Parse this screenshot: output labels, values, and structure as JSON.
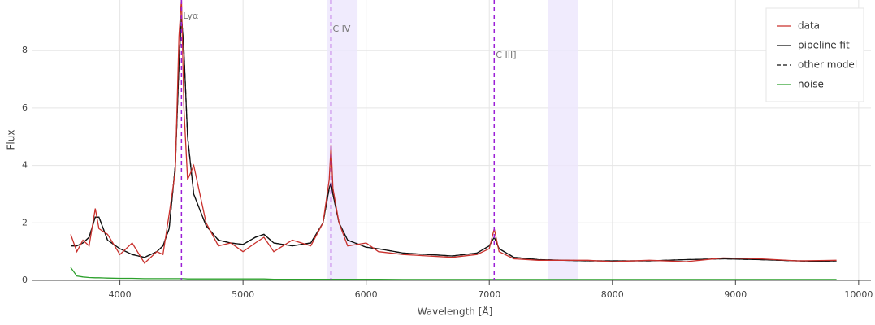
{
  "chart_data": {
    "type": "line",
    "x_label": "Wavelength [Å]",
    "y_label": "Flux",
    "xlim": [
      3290,
      10100
    ],
    "ylim": [
      0,
      9.76
    ],
    "xticks": [
      4000,
      5000,
      6000,
      7000,
      8000,
      9000,
      10000
    ],
    "yticks": [
      0,
      2,
      4,
      6,
      8
    ],
    "grid": true,
    "legend": "top-right",
    "x": [
      3600,
      3650,
      3700,
      3750,
      3800,
      3830,
      3900,
      4000,
      4100,
      4200,
      4300,
      4350,
      4400,
      4450,
      4480,
      4500,
      4520,
      4550,
      4600,
      4700,
      4800,
      4900,
      5000,
      5100,
      5170,
      5250,
      5400,
      5550,
      5650,
      5700,
      5715,
      5730,
      5780,
      5850,
      6000,
      6100,
      6300,
      6500,
      6700,
      6900,
      7000,
      7040,
      7080,
      7200,
      7400,
      7600,
      7800,
      8000,
      8300,
      8600,
      8900,
      9200,
      9500,
      9820
    ],
    "series": [
      {
        "name": "data",
        "color": "#c9302c",
        "style": "solid",
        "values": [
          1.6,
          1.0,
          1.4,
          1.2,
          2.5,
          1.8,
          1.6,
          0.9,
          1.3,
          0.6,
          1.0,
          0.9,
          2.3,
          3.8,
          8.5,
          9.8,
          6.0,
          3.5,
          4.0,
          2.0,
          1.2,
          1.3,
          1.0,
          1.3,
          1.5,
          1.0,
          1.4,
          1.2,
          2.0,
          3.5,
          4.7,
          3.2,
          2.0,
          1.2,
          1.3,
          1.0,
          0.9,
          0.85,
          0.8,
          0.9,
          1.1,
          1.8,
          1.0,
          0.75,
          0.7,
          0.7,
          0.7,
          0.65,
          0.7,
          0.65,
          0.78,
          0.75,
          0.68,
          0.7
        ]
      },
      {
        "name": "pipeline fit",
        "color": "#111111",
        "style": "solid",
        "values": [
          1.2,
          1.2,
          1.3,
          1.5,
          2.2,
          2.2,
          1.4,
          1.1,
          0.9,
          0.8,
          1.0,
          1.2,
          1.8,
          4.0,
          7.5,
          9.2,
          8.0,
          5.0,
          3.0,
          1.9,
          1.4,
          1.3,
          1.25,
          1.5,
          1.6,
          1.3,
          1.2,
          1.3,
          2.0,
          3.2,
          3.4,
          3.0,
          2.0,
          1.4,
          1.15,
          1.1,
          0.95,
          0.9,
          0.85,
          0.95,
          1.2,
          1.5,
          1.1,
          0.8,
          0.72,
          0.7,
          0.68,
          0.68,
          0.68,
          0.72,
          0.75,
          0.72,
          0.68,
          0.65
        ]
      },
      {
        "name": "other model",
        "color": "#111111",
        "style": "dashed",
        "values": [
          1.2,
          1.2,
          1.3,
          1.5,
          2.2,
          2.2,
          1.4,
          1.1,
          0.9,
          0.8,
          1.0,
          1.2,
          1.8,
          4.0,
          7.5,
          9.2,
          8.0,
          5.0,
          3.0,
          1.9,
          1.4,
          1.3,
          1.25,
          1.5,
          1.6,
          1.3,
          1.2,
          1.3,
          2.0,
          3.2,
          3.4,
          3.0,
          2.0,
          1.4,
          1.15,
          1.1,
          0.95,
          0.9,
          0.85,
          0.95,
          1.2,
          1.5,
          1.1,
          0.8,
          0.72,
          0.7,
          0.68,
          0.68,
          0.68,
          0.72,
          0.75,
          0.72,
          0.68,
          0.65
        ]
      },
      {
        "name": "noise",
        "color": "#2ca02c",
        "style": "solid",
        "values": [
          0.45,
          0.15,
          0.12,
          0.1,
          0.09,
          0.09,
          0.08,
          0.07,
          0.07,
          0.06,
          0.06,
          0.06,
          0.06,
          0.06,
          0.06,
          0.06,
          0.06,
          0.05,
          0.05,
          0.05,
          0.05,
          0.05,
          0.05,
          0.05,
          0.05,
          0.04,
          0.04,
          0.04,
          0.04,
          0.04,
          0.04,
          0.04,
          0.04,
          0.04,
          0.04,
          0.04,
          0.03,
          0.03,
          0.03,
          0.03,
          0.03,
          0.03,
          0.03,
          0.03,
          0.03,
          0.03,
          0.03,
          0.03,
          0.03,
          0.03,
          0.03,
          0.03,
          0.03,
          0.03
        ]
      }
    ],
    "lines": [
      {
        "x": 4500,
        "label": "Lyα"
      },
      {
        "x": 5715,
        "label": "C IV"
      },
      {
        "x": 7040,
        "label": "C III]"
      }
    ],
    "line_color": "#9b1fd6",
    "bands": [
      [
        5680,
        5930
      ],
      [
        7480,
        7720
      ]
    ],
    "band_color": "#ece6fc"
  }
}
